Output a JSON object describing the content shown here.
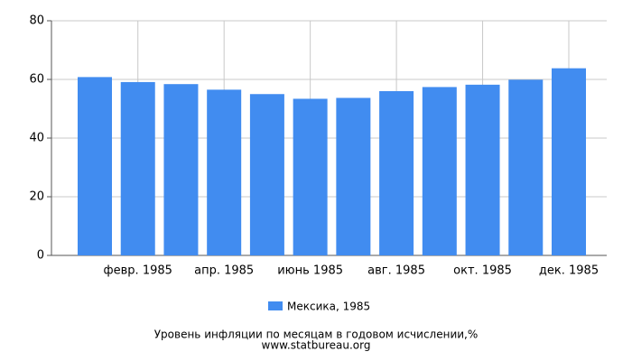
{
  "chart_data": {
    "type": "bar",
    "categories": [
      null,
      "февр. 1985",
      null,
      "апр. 1985",
      null,
      "июнь 1985",
      null,
      "авг. 1985",
      null,
      "окт. 1985",
      null,
      "дек. 1985"
    ],
    "series": [
      {
        "name": "Мексика, 1985",
        "color": "#418cf0",
        "values": [
          60.8,
          59.1,
          58.4,
          56.5,
          55.0,
          53.4,
          53.7,
          56.0,
          57.4,
          58.2,
          59.9,
          63.8
        ]
      }
    ],
    "ylim": [
      0,
      80
    ],
    "yticks": [
      0,
      20,
      40,
      60,
      80
    ],
    "grid": true,
    "title": "Уровень инфляции по месяцам в годовом исчислении,%",
    "source": "www.statbureau.org"
  }
}
